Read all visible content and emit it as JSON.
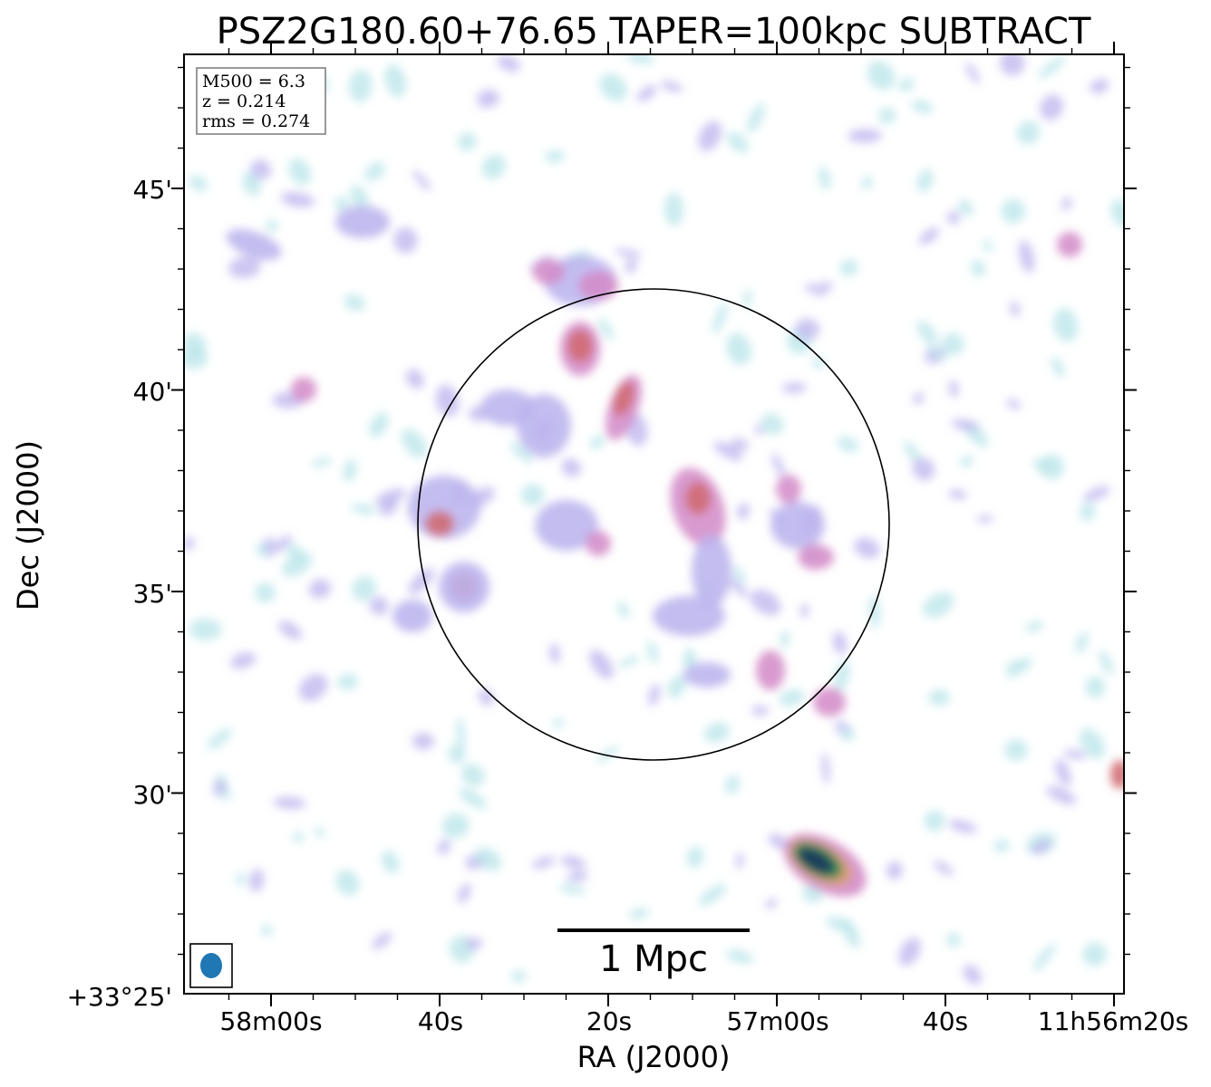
{
  "chart_data": {
    "type": "heatmap",
    "title": "PSZ2G180.60+76.65 TAPER=100kpc SUBTRACT",
    "xlabel": "RA (J2000)",
    "ylabel": "Dec (J2000)",
    "x_ticks": [
      "58m00s",
      "40s",
      "20s",
      "57m00s",
      "40s",
      "11h56m20s"
    ],
    "y_ticks": [
      "45'",
      "40'",
      "35'",
      "30'",
      "+33°25'"
    ],
    "info_box": {
      "m500": "M500 = 6.3",
      "z": "z = 0.214",
      "rms": "rms = 0.274"
    },
    "scale_bar_label": "1 Mpc",
    "colors": {
      "faint": "#b8e4e8",
      "low": "#bcb4ee",
      "mid": "#d48cc8",
      "high": "#d06a70",
      "peak": "#1e3f5c",
      "beam": "#1f77b4"
    }
  }
}
